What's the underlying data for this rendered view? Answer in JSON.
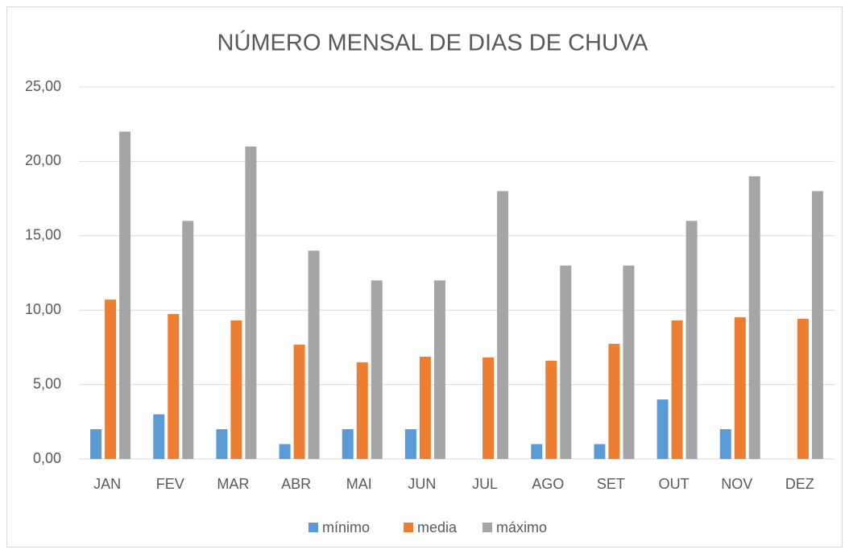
{
  "chart_data": {
    "type": "bar",
    "title": "NÚMERO MENSAL DE DIAS DE CHUVA",
    "categories": [
      "JAN",
      "FEV",
      "MAR",
      "ABR",
      "MAI",
      "JUN",
      "JUL",
      "AGO",
      "SET",
      "OUT",
      "NOV",
      "DEZ"
    ],
    "series": [
      {
        "name": "mínimo",
        "color": "#5b9bd5",
        "values": [
          2,
          3,
          2,
          1,
          2,
          2,
          0,
          1,
          1,
          4,
          2,
          0
        ]
      },
      {
        "name": "media",
        "color": "#ed7d31",
        "values": [
          10.71,
          9.74,
          9.31,
          7.68,
          6.49,
          6.87,
          6.82,
          6.6,
          7.74,
          9.31,
          9.52,
          9.42
        ]
      },
      {
        "name": "máximo",
        "color": "#a5a5a5",
        "values": [
          22,
          16,
          21,
          14,
          12,
          12,
          18,
          13,
          13,
          16,
          19,
          18
        ]
      }
    ],
    "ylim": [
      0,
      25
    ],
    "yticks": [
      {
        "value": 0,
        "label": "0,00"
      },
      {
        "value": 5,
        "label": "5,00"
      },
      {
        "value": 10,
        "label": "10,00"
      },
      {
        "value": 15,
        "label": "15,00"
      },
      {
        "value": 20,
        "label": "20,00"
      },
      {
        "value": 25,
        "label": "25,00"
      }
    ],
    "grid": true,
    "legend": "bottom"
  }
}
